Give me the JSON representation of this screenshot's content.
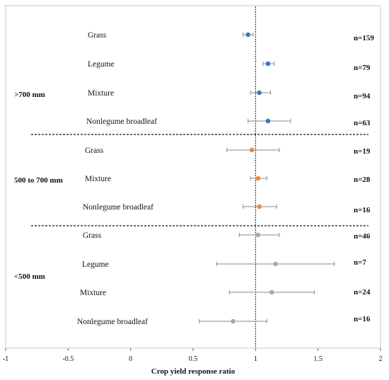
{
  "chart_data": {
    "type": "scatter",
    "xlabel": "Crop yield response ratio",
    "xlim": [
      -1,
      2
    ],
    "xticks": [
      "-1",
      "-0.5",
      "0",
      "0.5",
      "1",
      "1.5",
      "2"
    ],
    "reference_line": 1,
    "groups": [
      {
        "label": ">700 mm",
        "color": "#3a78c8",
        "items": [
          {
            "category": "Grass",
            "mean": 0.94,
            "lo": 0.9,
            "hi": 0.98,
            "n": "n=159"
          },
          {
            "category": "Legume",
            "mean": 1.1,
            "lo": 1.06,
            "hi": 1.15,
            "n": "n=79"
          },
          {
            "category": "Mixture",
            "mean": 1.03,
            "lo": 0.96,
            "hi": 1.12,
            "n": "n=94"
          },
          {
            "category": "Nonlegume broadleaf",
            "mean": 1.1,
            "lo": 0.94,
            "hi": 1.28,
            "n": "n=63"
          }
        ]
      },
      {
        "label": "500 to 700 mm",
        "color": "#f0883a",
        "items": [
          {
            "category": "Grass",
            "mean": 0.97,
            "lo": 0.77,
            "hi": 1.19,
            "n": "n=19"
          },
          {
            "category": "Mixture",
            "mean": 1.02,
            "lo": 0.96,
            "hi": 1.09,
            "n": "n=28"
          },
          {
            "category": "Nonlegume broadleaf",
            "mean": 1.03,
            "lo": 0.9,
            "hi": 1.17,
            "n": "n=16"
          }
        ]
      },
      {
        "label": "<500 mm",
        "color": "#a9a9a9",
        "items": [
          {
            "category": "Grass",
            "mean": 1.02,
            "lo": 0.87,
            "hi": 1.19,
            "n": "n=46"
          },
          {
            "category": "Legume",
            "mean": 1.16,
            "lo": 0.69,
            "hi": 1.63,
            "n": "n=7"
          },
          {
            "category": "Mixture",
            "mean": 1.13,
            "lo": 0.79,
            "hi": 1.47,
            "n": "n=24"
          },
          {
            "category": "Nonlegume broadleaf",
            "mean": 0.82,
            "lo": 0.55,
            "hi": 1.09,
            "n": "n=16"
          }
        ]
      }
    ]
  }
}
